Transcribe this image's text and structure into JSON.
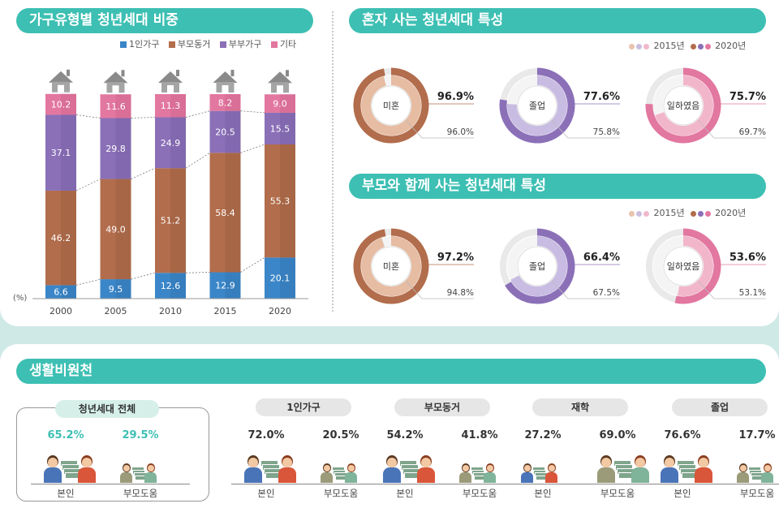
{
  "sections": {
    "household_title": "가구유형별 청년세대 비중",
    "alone_title": "혼자 사는 청년세대 특성",
    "parents_title": "부모와 함께 사는 청년세대 특성",
    "living_title": "생활비원천"
  },
  "colors": {
    "single": "#3b86c8",
    "parent": "#b26d4c",
    "couple": "#8b70b8",
    "other": "#e2779f",
    "teal": "#3dbfb3"
  },
  "chart_data": [
    {
      "type": "bar",
      "stacked": true,
      "unit_label": "(%)",
      "categories": [
        "2000",
        "2005",
        "2010",
        "2015",
        "2020"
      ],
      "series": [
        {
          "name": "1인가구",
          "values": [
            6.6,
            9.5,
            12.6,
            12.9,
            20.1
          ]
        },
        {
          "name": "부모동거",
          "values": [
            46.2,
            49.0,
            51.2,
            58.4,
            55.3
          ]
        },
        {
          "name": "부부가구",
          "values": [
            37.1,
            29.8,
            24.9,
            20.5,
            15.5
          ]
        },
        {
          "name": "기타",
          "values": [
            10.2,
            11.6,
            11.3,
            8.2,
            9.0
          ]
        }
      ],
      "value_labels": [
        [
          "6.6",
          "46.2",
          "37.1",
          "10.2"
        ],
        [
          "9.5",
          "49.0",
          "29.8",
          "11.6"
        ],
        [
          "12.6",
          "51.2",
          "24.9",
          "11.3"
        ],
        [
          "12.9",
          "58.4",
          "20.5",
          "8.2"
        ],
        [
          "20.1",
          "55.3",
          "15.5",
          "9.0"
        ]
      ],
      "legend_position": "top-right",
      "ylim": [
        0,
        100
      ]
    },
    {
      "type": "pie",
      "group": "혼자 사는 청년세대 특성",
      "legend": [
        "2015년",
        "2020년"
      ],
      "items": [
        {
          "label": "미혼",
          "y2020": 96.9,
          "y2015": 96.0,
          "y2020_text": "96.9%",
          "y2015_text": "96.0%"
        },
        {
          "label": "졸업",
          "y2020": 77.6,
          "y2015": 75.8,
          "y2020_text": "77.6%",
          "y2015_text": "75.8%"
        },
        {
          "label": "일하였음",
          "y2020": 75.7,
          "y2015": 69.7,
          "y2020_text": "75.7%",
          "y2015_text": "69.7%"
        }
      ]
    },
    {
      "type": "pie",
      "group": "부모와 함께 사는 청년세대 특성",
      "legend": [
        "2015년",
        "2020년"
      ],
      "items": [
        {
          "label": "미혼",
          "y2020": 97.2,
          "y2015": 94.8,
          "y2020_text": "97.2%",
          "y2015_text": "94.8%"
        },
        {
          "label": "졸업",
          "y2020": 66.4,
          "y2015": 67.5,
          "y2020_text": "66.4%",
          "y2015_text": "67.5%"
        },
        {
          "label": "일하였음",
          "y2020": 53.6,
          "y2015": 53.1,
          "y2020_text": "53.6%",
          "y2015_text": "53.1%"
        }
      ]
    },
    {
      "type": "table",
      "title": "생활비원천",
      "groups": [
        {
          "label": "청년세대 전체",
          "self": "65.2%",
          "parents": "29.5%",
          "self_value": 65.2,
          "parents_value": 29.5
        },
        {
          "label": "1인가구",
          "self": "72.0%",
          "parents": "20.5%",
          "self_value": 72.0,
          "parents_value": 20.5
        },
        {
          "label": "부모동거",
          "self": "54.2%",
          "parents": "41.8%",
          "self_value": 54.2,
          "parents_value": 41.8
        },
        {
          "label": "재학",
          "self": "27.2%",
          "parents": "69.0%",
          "self_value": 27.2,
          "parents_value": 69.0
        },
        {
          "label": "졸업",
          "self": "76.6%",
          "parents": "17.7%",
          "self_value": 76.6,
          "parents_value": 17.7
        }
      ],
      "row_labels": {
        "self": "본인",
        "parents": "부모도움"
      }
    }
  ]
}
